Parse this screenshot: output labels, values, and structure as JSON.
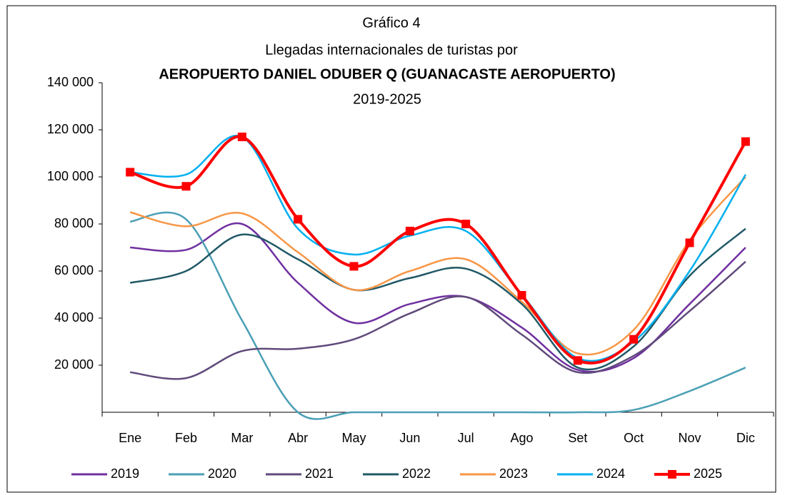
{
  "chart_data": {
    "type": "line",
    "title_lines": [
      "Gráfico 4",
      "Llegadas internacionales de turistas por",
      "AEROPUERTO DANIEL ODUBER Q (GUANACASTE AEROPUERTO)",
      "2019-2025"
    ],
    "categories": [
      "Ene",
      "Feb",
      "Mar",
      "Abr",
      "May",
      "Jun",
      "Jul",
      "Ago",
      "Set",
      "Oct",
      "Nov",
      "Dic"
    ],
    "ylim": [
      0,
      140000
    ],
    "yticks": [
      {
        "value": 20000,
        "label": "20 000"
      },
      {
        "value": 40000,
        "label": "40 000"
      },
      {
        "value": 60000,
        "label": "60 000"
      },
      {
        "value": 80000,
        "label": "80 000"
      },
      {
        "value": 100000,
        "label": "100 000"
      },
      {
        "value": 120000,
        "label": "120 000"
      },
      {
        "value": 140000,
        "label": "140 000"
      }
    ],
    "series": [
      {
        "name": "2019",
        "color": "#7030a0",
        "values": [
          70000,
          69000,
          80000,
          55000,
          38000,
          46000,
          49000,
          36000,
          18000,
          23000,
          46000,
          70000
        ]
      },
      {
        "name": "2020",
        "color": "#4a9fb5",
        "values": [
          81000,
          82000,
          39000,
          0,
          0,
          0,
          0,
          0,
          0,
          1000,
          9000,
          19000
        ]
      },
      {
        "name": "2021",
        "color": "#604a7b",
        "values": [
          17000,
          14500,
          26000,
          27000,
          31000,
          42000,
          49000,
          33000,
          17000,
          24000,
          43000,
          64000
        ]
      },
      {
        "name": "2022",
        "color": "#215967",
        "values": [
          55000,
          60000,
          75500,
          65000,
          52000,
          57000,
          61000,
          46000,
          19000,
          28000,
          58000,
          78000
        ]
      },
      {
        "name": "2023",
        "color": "#f79646",
        "values": [
          85000,
          79000,
          84500,
          68000,
          52000,
          60000,
          65000,
          47000,
          25000,
          35000,
          73000,
          100000
        ]
      },
      {
        "name": "2024",
        "color": "#00b0f0",
        "values": [
          102000,
          101000,
          117000,
          78000,
          67000,
          75000,
          77000,
          50000,
          23000,
          30000,
          60000,
          101000
        ]
      },
      {
        "name": "2025",
        "color": "#ff0000",
        "marker": "square",
        "values": [
          102000,
          96000,
          117000,
          82000,
          62000,
          77000,
          80000,
          49700,
          22000,
          31000,
          72000,
          115000
        ]
      }
    ]
  }
}
